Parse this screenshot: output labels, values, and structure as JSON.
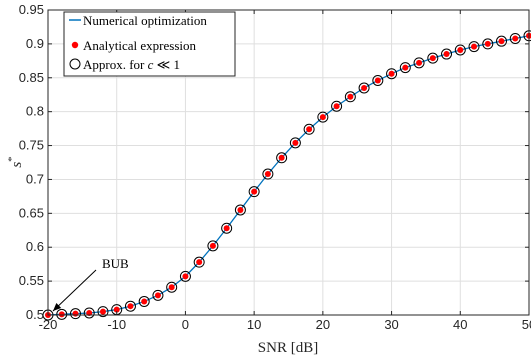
{
  "chart_data": {
    "type": "line",
    "xlabel": "SNR [dB]",
    "ylabel": "s*",
    "xlim": [
      -20,
      50
    ],
    "ylim": [
      0.5,
      0.95
    ],
    "xticks": [
      "-20",
      "-10",
      "0",
      "10",
      "20",
      "30",
      "40",
      "50"
    ],
    "yticks": [
      "0.5",
      "0.55",
      "0.6",
      "0.65",
      "0.7",
      "0.75",
      "0.8",
      "0.85",
      "0.9",
      "0.95"
    ],
    "grid": true,
    "legend_position": "top-left",
    "x": [
      -20,
      -18,
      -16,
      -14,
      -12,
      -10,
      -8,
      -6,
      -4,
      -2,
      0,
      2,
      4,
      6,
      8,
      10,
      12,
      14,
      16,
      18,
      20,
      22,
      24,
      26,
      28,
      30,
      32,
      34,
      36,
      38,
      40,
      42,
      44,
      46,
      48,
      50
    ],
    "series": [
      {
        "name": "Numerical optimization",
        "style": "line",
        "color": "#0072BD",
        "values": [
          0.5,
          0.501,
          0.502,
          0.503,
          0.505,
          0.508,
          0.513,
          0.52,
          0.529,
          0.541,
          0.557,
          0.578,
          0.602,
          0.628,
          0.655,
          0.682,
          0.708,
          0.732,
          0.754,
          0.774,
          0.792,
          0.808,
          0.822,
          0.835,
          0.846,
          0.856,
          0.865,
          0.872,
          0.879,
          0.885,
          0.891,
          0.896,
          0.9,
          0.904,
          0.908,
          0.912
        ]
      },
      {
        "name": "Analytical expression",
        "style": "dot",
        "color": "#FF0000",
        "values": [
          0.5,
          0.501,
          0.502,
          0.503,
          0.505,
          0.508,
          0.513,
          0.52,
          0.529,
          0.541,
          0.557,
          0.578,
          0.602,
          0.628,
          0.655,
          0.682,
          0.708,
          0.732,
          0.754,
          0.774,
          0.792,
          0.808,
          0.822,
          0.835,
          0.846,
          0.856,
          0.865,
          0.872,
          0.879,
          0.885,
          0.891,
          0.896,
          0.9,
          0.904,
          0.908,
          0.912
        ]
      },
      {
        "name": "Approx. for c ≪ 1",
        "style": "circle",
        "color": "#000000",
        "values": [
          0.5,
          0.501,
          0.502,
          0.503,
          0.505,
          0.508,
          0.513,
          0.52,
          0.529,
          0.541,
          0.557,
          0.578,
          0.602,
          0.628,
          0.655,
          0.682,
          0.708,
          0.732,
          0.754,
          0.774,
          0.792,
          0.808,
          0.822,
          0.835,
          0.846,
          0.856,
          0.865,
          0.872,
          0.879,
          0.885,
          0.891,
          0.896,
          0.9,
          0.904,
          0.908,
          0.912
        ]
      }
    ],
    "annotations": [
      {
        "text": "BUB",
        "points_to": {
          "x": -20,
          "y": 0.5
        }
      }
    ]
  }
}
